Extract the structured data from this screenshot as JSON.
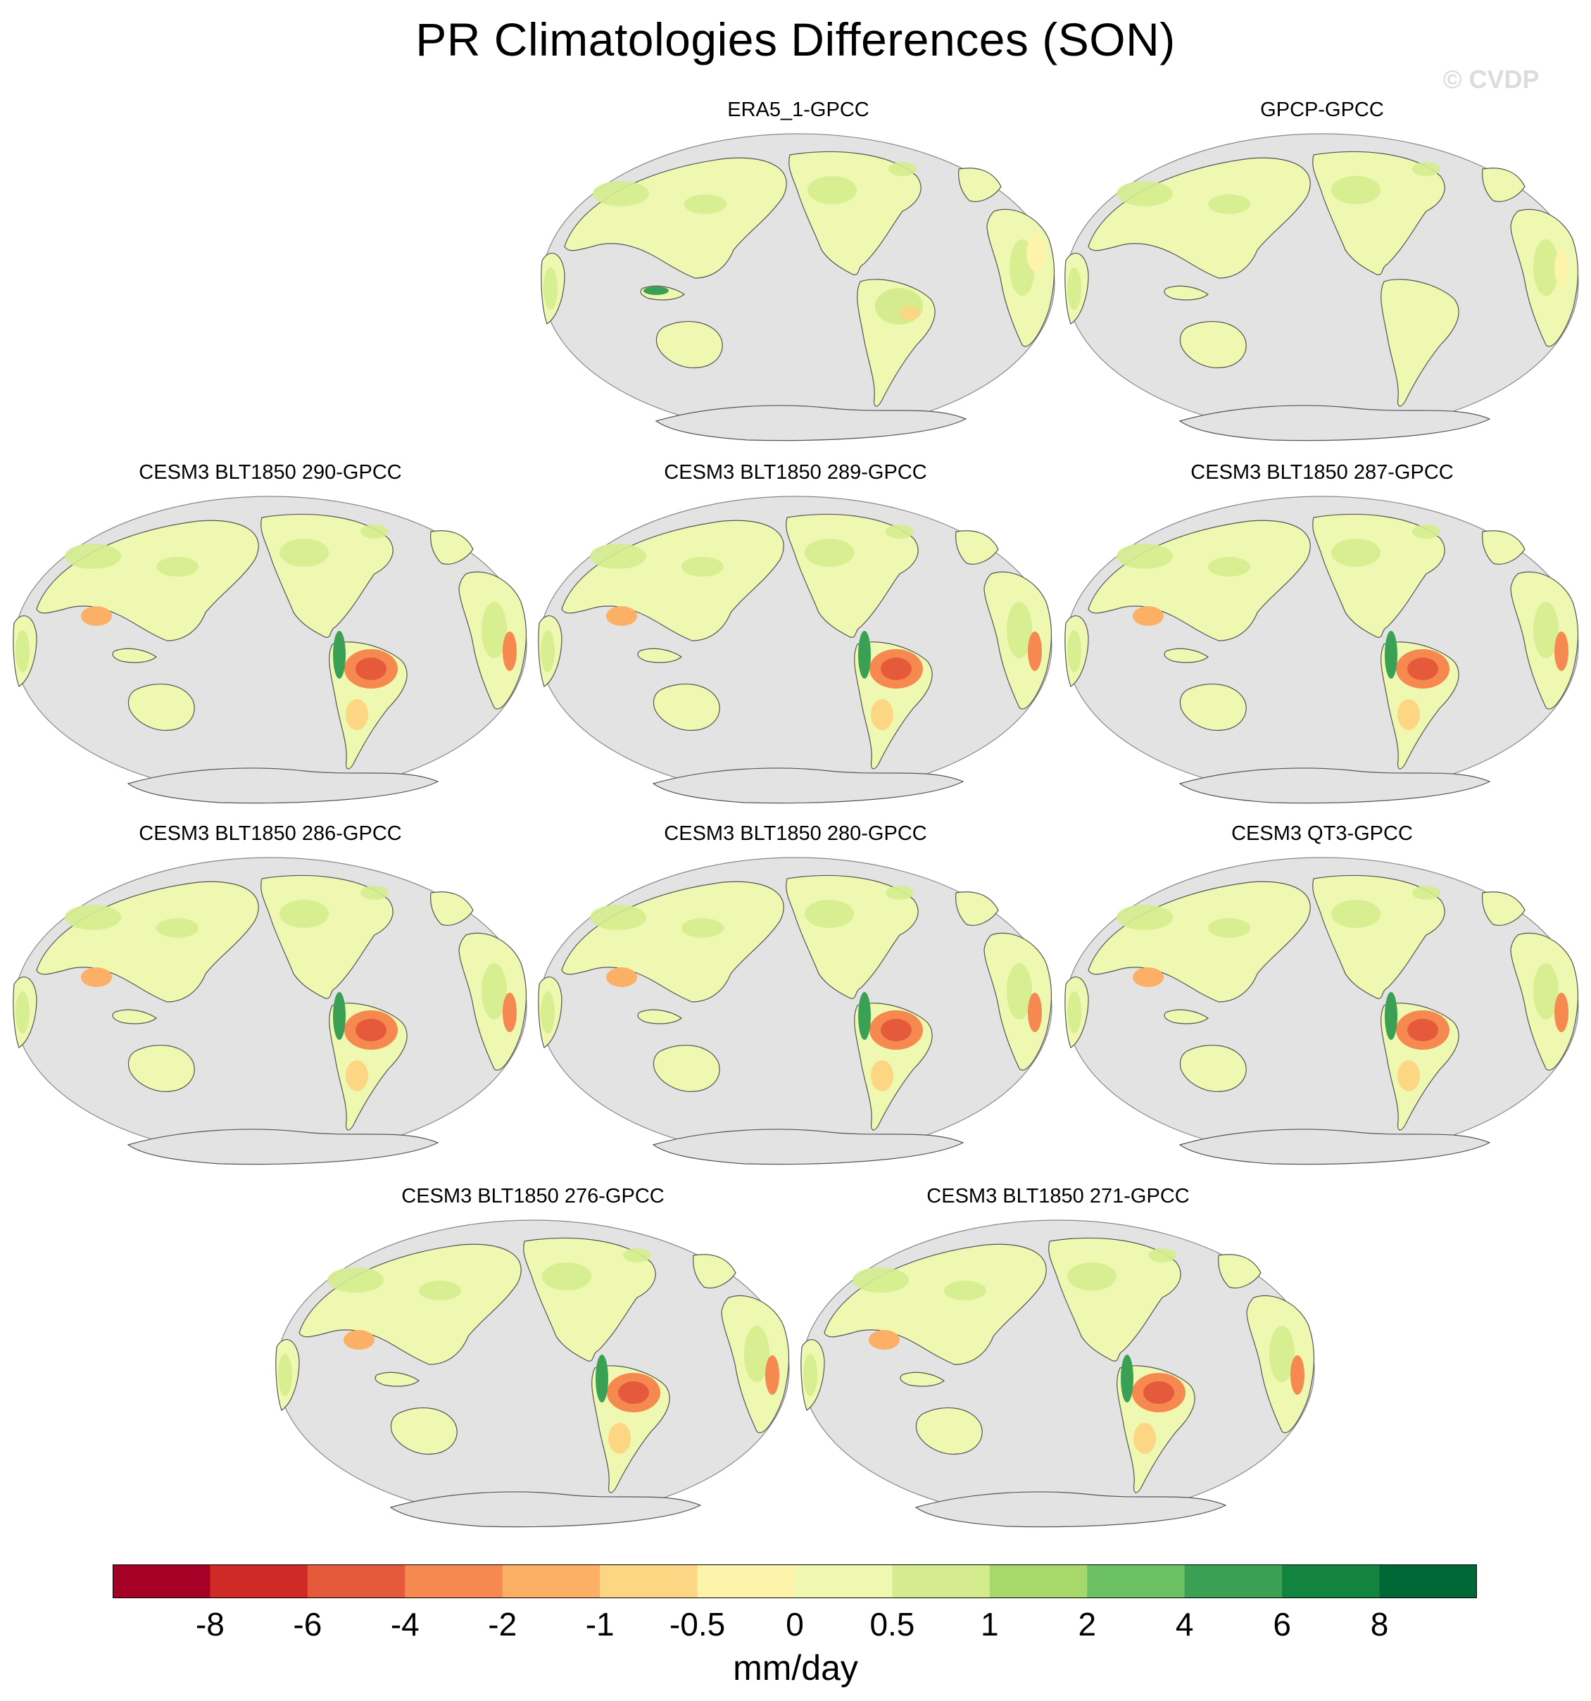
{
  "title": "PR Climatologies Differences (SON)",
  "watermark": "© CVDP",
  "panels": [
    {
      "label": "ERA5_1-GPCC",
      "amazon": "mixed"
    },
    {
      "label": "GPCP-GPCC",
      "amazon": "green"
    },
    {
      "label": "CESM3 BLT1850 290-GPCC",
      "amazon": "dry"
    },
    {
      "label": "CESM3 BLT1850 289-GPCC",
      "amazon": "dry"
    },
    {
      "label": "CESM3 BLT1850 287-GPCC",
      "amazon": "dry"
    },
    {
      "label": "CESM3 BLT1850 286-GPCC",
      "amazon": "dry"
    },
    {
      "label": "CESM3 BLT1850 280-GPCC",
      "amazon": "dry"
    },
    {
      "label": "CESM3 QT3-GPCC",
      "amazon": "dry"
    },
    {
      "label": "CESM3 BLT1850 276-GPCC",
      "amazon": "dry"
    },
    {
      "label": "CESM3 BLT1850 271-GPCC",
      "amazon": "dry"
    }
  ],
  "colorbar": {
    "units": "mm/day",
    "labels": [
      "-8",
      "-6",
      "-4",
      "-2",
      "-1",
      "-0.5",
      "0",
      "0.5",
      "1",
      "2",
      "4",
      "6",
      "8"
    ],
    "colors": [
      "#a50026",
      "#d02a27",
      "#e65a3c",
      "#f5894f",
      "#fbb066",
      "#fdd684",
      "#fef3aa",
      "#eff8b0",
      "#d4ec8e",
      "#a7d96a",
      "#6bc064",
      "#3aa154",
      "#12843f",
      "#006837"
    ],
    "ocean_color": "#e3e3e3",
    "coast_color": "#555555"
  }
}
